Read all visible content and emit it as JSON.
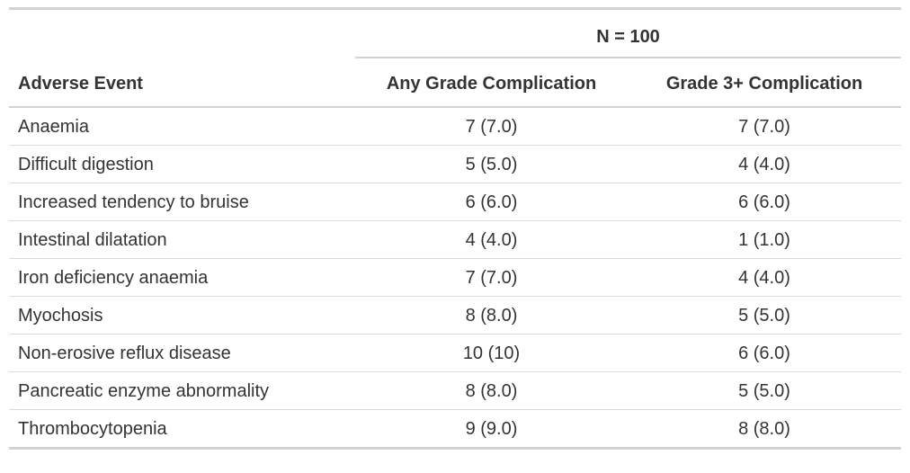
{
  "chart_data": {
    "type": "table",
    "title": "",
    "spanner": {
      "label": "N = 100",
      "spans_columns": [
        "Any Grade Complication",
        "Grade 3+ Complication"
      ]
    },
    "columns": [
      "Adverse Event",
      "Any Grade Complication",
      "Grade 3+ Complication"
    ],
    "rows": [
      [
        "Anaemia",
        "7 (7.0)",
        "7 (7.0)"
      ],
      [
        "Difficult digestion",
        "5 (5.0)",
        "4 (4.0)"
      ],
      [
        "Increased tendency to bruise",
        "6 (6.0)",
        "6 (6.0)"
      ],
      [
        "Intestinal dilatation",
        "4 (4.0)",
        "1 (1.0)"
      ],
      [
        "Iron deficiency anaemia",
        "7 (7.0)",
        "4 (4.0)"
      ],
      [
        "Myochosis",
        "8 (8.0)",
        "5 (5.0)"
      ],
      [
        "Non-erosive reflux disease",
        "10 (10)",
        "6 (6.0)"
      ],
      [
        "Pancreatic enzyme abnormality",
        "8 (8.0)",
        "5 (5.0)"
      ],
      [
        "Thrombocytopenia",
        "9 (9.0)",
        "8 (8.0)"
      ]
    ],
    "layout_hints": {
      "numeric_columns_alignment": "center",
      "event_column_alignment": "left",
      "grid": "horizontal-rules-only"
    }
  },
  "style": {
    "text_color": "#333333",
    "border_color": "#d3d3d3",
    "row_line_color": "#dcdcdc",
    "background": "#ffffff"
  }
}
